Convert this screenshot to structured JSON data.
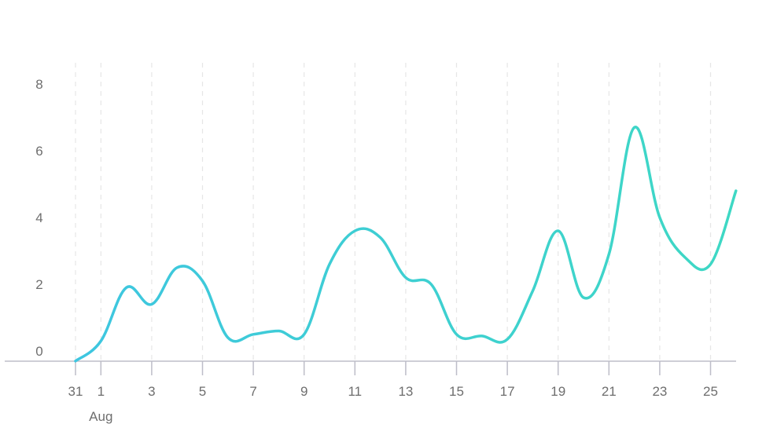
{
  "chart_data": {
    "type": "line",
    "title": "",
    "xlabel": "",
    "ylabel": "",
    "x_start": "2023-07-31",
    "x_end": "2023-08-26",
    "ylim": [
      0,
      8
    ],
    "y_ticks": [
      "0",
      "2",
      "4",
      "6",
      "8"
    ],
    "x_ticks": [
      {
        "date": "2023-07-31",
        "label": "31"
      },
      {
        "date": "2023-08-01",
        "label": "1"
      },
      {
        "date": "2023-08-03",
        "label": "3"
      },
      {
        "date": "2023-08-05",
        "label": "5"
      },
      {
        "date": "2023-08-07",
        "label": "7"
      },
      {
        "date": "2023-08-09",
        "label": "9"
      },
      {
        "date": "2023-08-11",
        "label": "11"
      },
      {
        "date": "2023-08-13",
        "label": "13"
      },
      {
        "date": "2023-08-15",
        "label": "15"
      },
      {
        "date": "2023-08-17",
        "label": "17"
      },
      {
        "date": "2023-08-19",
        "label": "19"
      },
      {
        "date": "2023-08-21",
        "label": "21"
      },
      {
        "date": "2023-08-23",
        "label": "23"
      },
      {
        "date": "2023-08-25",
        "label": "25"
      }
    ],
    "month_label": {
      "date": "2023-08-01",
      "text": "Aug"
    },
    "grid": {
      "vertical": true,
      "horizontal": false,
      "style": "dashed"
    },
    "legend": "none",
    "colors": {
      "line_start": "#3ec6e0",
      "line_end": "#3ed8c4",
      "grid": "#e6e6e6",
      "axis": "#bdbdc8",
      "tick_text": "#6e6e6e"
    },
    "series": [
      {
        "points": [
          {
            "x": "2023-07-31",
            "y": -0.3
          },
          {
            "x": "2023-08-01",
            "y": 0.3
          },
          {
            "x": "2023-08-02",
            "y": 1.9
          },
          {
            "x": "2023-08-03",
            "y": 1.4
          },
          {
            "x": "2023-08-04",
            "y": 2.5
          },
          {
            "x": "2023-08-05",
            "y": 2.1
          },
          {
            "x": "2023-08-06",
            "y": 0.4
          },
          {
            "x": "2023-08-07",
            "y": 0.5
          },
          {
            "x": "2023-08-08",
            "y": 0.6
          },
          {
            "x": "2023-08-09",
            "y": 0.5
          },
          {
            "x": "2023-08-10",
            "y": 2.6
          },
          {
            "x": "2023-08-11",
            "y": 3.6
          },
          {
            "x": "2023-08-12",
            "y": 3.4
          },
          {
            "x": "2023-08-13",
            "y": 2.2
          },
          {
            "x": "2023-08-14",
            "y": 2.0
          },
          {
            "x": "2023-08-15",
            "y": 0.5
          },
          {
            "x": "2023-08-16",
            "y": 0.45
          },
          {
            "x": "2023-08-17",
            "y": 0.35
          },
          {
            "x": "2023-08-18",
            "y": 1.8
          },
          {
            "x": "2023-08-19",
            "y": 3.6
          },
          {
            "x": "2023-08-20",
            "y": 1.6
          },
          {
            "x": "2023-08-21",
            "y": 2.9
          },
          {
            "x": "2023-08-22",
            "y": 6.7
          },
          {
            "x": "2023-08-23",
            "y": 4.0
          },
          {
            "x": "2023-08-24",
            "y": 2.8
          },
          {
            "x": "2023-08-25",
            "y": 2.6
          },
          {
            "x": "2023-08-26",
            "y": 4.8
          }
        ]
      }
    ]
  }
}
